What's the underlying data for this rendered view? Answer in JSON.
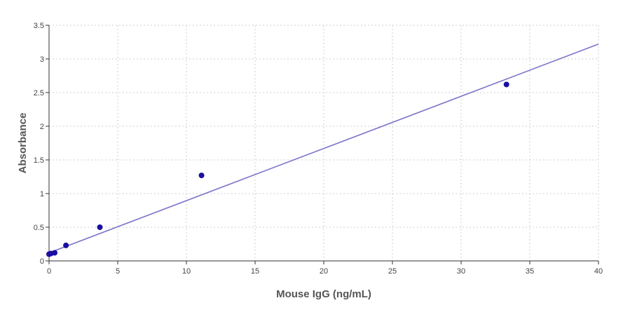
{
  "chart_data": {
    "type": "scatter",
    "title": "",
    "xlabel": "Mouse IgG (ng/mL)",
    "ylabel": "Absorbance",
    "xlim": [
      0,
      40
    ],
    "ylim": [
      0,
      3.5
    ],
    "xticks": [
      0,
      5,
      10,
      15,
      20,
      25,
      30,
      35,
      40
    ],
    "xtick_labels": [
      "0",
      "5",
      "10",
      "15",
      "20",
      "25",
      "30",
      "35",
      "40"
    ],
    "yticks": [
      0,
      0.5,
      1,
      1.5,
      2,
      2.5,
      3,
      3.5
    ],
    "ytick_labels": [
      "0",
      "0.5",
      "1",
      "1.5",
      "2",
      "2.5",
      "3",
      "3.5"
    ],
    "grid": true,
    "legend": "none",
    "point_color": "#1a0fa0",
    "line_color": "#7a74c9",
    "points": [
      {
        "x": 0.0,
        "y": 0.1
      },
      {
        "x": 0.14,
        "y": 0.11
      },
      {
        "x": 0.41,
        "y": 0.12
      },
      {
        "x": 1.23,
        "y": 0.23
      },
      {
        "x": 3.7,
        "y": 0.5
      },
      {
        "x": 11.1,
        "y": 1.27
      },
      {
        "x": 33.3,
        "y": 2.62
      }
    ],
    "fit_line": {
      "x": [
        0,
        40
      ],
      "y": [
        0.12,
        3.22
      ]
    }
  }
}
